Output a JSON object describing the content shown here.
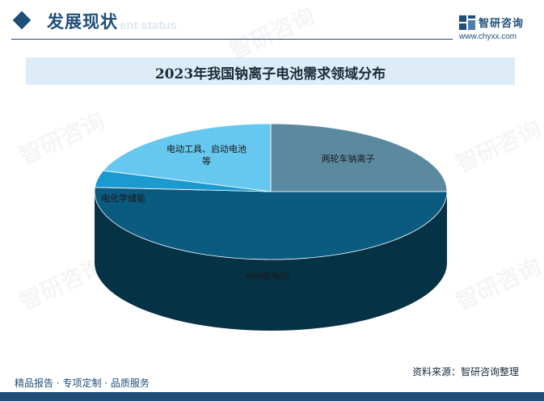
{
  "header": {
    "section_title": "发展现状",
    "section_subtitle": "ent status",
    "logo_name": "智研咨询",
    "logo_url": "www.chyxx.com"
  },
  "chart_data": {
    "type": "pie",
    "title": "2023年我国钠离子电池需求领域分布",
    "slices": [
      {
        "label": "两轮车钠离子",
        "value": 25,
        "color": "#5b8aa0"
      },
      {
        "label": "A00级电动",
        "value": 51,
        "color": "#0b5a80"
      },
      {
        "label": "电化学储能",
        "value": 4,
        "color": "#1b9ad0"
      },
      {
        "label": "电动工具、启动电池等",
        "value": 20,
        "color": "#66c8ee"
      }
    ],
    "legend": "none"
  },
  "footer": {
    "services": "精品报告 · 专项定制 · 品质服务",
    "source": "资料来源：智研咨询整理"
  },
  "watermark": "智研咨询"
}
